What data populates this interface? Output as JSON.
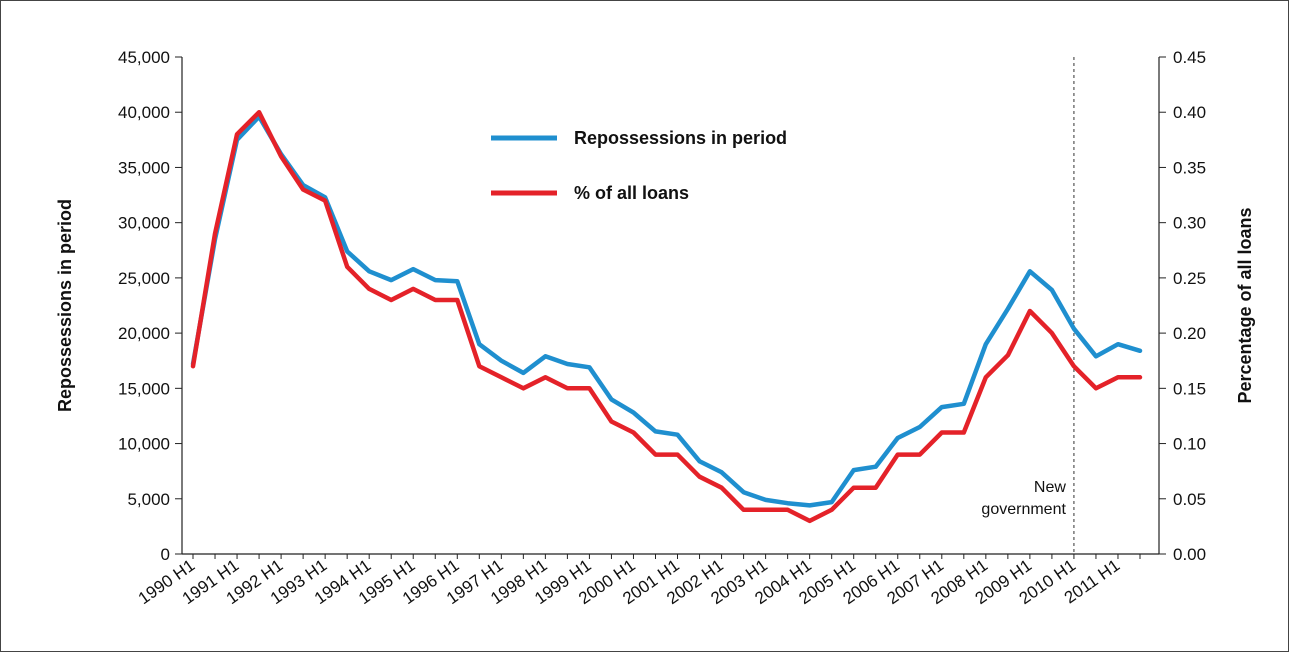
{
  "chart_data": {
    "type": "line",
    "x": [
      "1990 H1",
      "1990 H2",
      "1991 H1",
      "1991 H2",
      "1992 H1",
      "1992 H2",
      "1993 H1",
      "1993 H2",
      "1994 H1",
      "1994 H2",
      "1995 H1",
      "1995 H2",
      "1996 H1",
      "1996 H2",
      "1997 H1",
      "1997 H2",
      "1998 H1",
      "1998 H2",
      "1999 H1",
      "1999 H2",
      "2000 H1",
      "2000 H2",
      "2001 H1",
      "2001 H2",
      "2002 H1",
      "2002 H2",
      "2003 H1",
      "2003 H2",
      "2004 H1",
      "2004 H2",
      "2005 H1",
      "2005 H2",
      "2006 H1",
      "2006 H2",
      "2007 H1",
      "2007 H2",
      "2008 H1",
      "2008 H2",
      "2009 H1",
      "2009 H2",
      "2010 H1",
      "2010 H2",
      "2011 H1",
      "2011 H2"
    ],
    "x_tick_labels": [
      "1990 H1",
      "1991 H1",
      "1992 H1",
      "1993 H1",
      "1994 H1",
      "1995 H1",
      "1996 H1",
      "1997 H1",
      "1998 H1",
      "1999 H1",
      "2000 H1",
      "2001 H1",
      "2002 H1",
      "2003 H1",
      "2004 H1",
      "2005 H1",
      "2006 H1",
      "2007 H1",
      "2008 H1",
      "2009 H1",
      "2010 H1",
      "2011 H1"
    ],
    "y_ticks_left": [
      "0",
      "5,000",
      "10,000",
      "15,000",
      "20,000",
      "25,000",
      "30,000",
      "35,000",
      "40,000",
      "45,000"
    ],
    "y_ticks_right": [
      "0.00",
      "0.05",
      "0.10",
      "0.15",
      "0.20",
      "0.25",
      "0.30",
      "0.35",
      "0.40",
      "0.45"
    ],
    "ylim_left": [
      0,
      45000
    ],
    "ylim_right": [
      0,
      0.45
    ],
    "ylabel_left": "Repossessions in period",
    "ylabel_right": "Percentage of all loans",
    "grid": false,
    "legend_position": "top-center",
    "series": [
      {
        "name": "Repossessions in period",
        "axis": "left",
        "color": "#1f8fcf",
        "values": [
          17200,
          28500,
          37500,
          39600,
          36200,
          33400,
          32300,
          27400,
          25600,
          24800,
          25800,
          24800,
          24700,
          19000,
          17500,
          16400,
          17900,
          17200,
          16900,
          14000,
          12800,
          11100,
          10800,
          8400,
          7400,
          5600,
          4900,
          4600,
          4400,
          4700,
          7600,
          7900,
          10500,
          11500,
          13300,
          13600,
          19000,
          22200,
          25600,
          23900,
          20400,
          17900,
          19000,
          18400
        ]
      },
      {
        "name": "% of all loans",
        "axis": "right",
        "color": "#e42229",
        "values": [
          0.17,
          0.29,
          0.38,
          0.4,
          0.36,
          0.33,
          0.32,
          0.26,
          0.24,
          0.23,
          0.24,
          0.23,
          0.23,
          0.17,
          0.16,
          0.15,
          0.16,
          0.15,
          0.15,
          0.12,
          0.11,
          0.09,
          0.09,
          0.07,
          0.06,
          0.04,
          0.04,
          0.04,
          0.03,
          0.04,
          0.06,
          0.06,
          0.09,
          0.09,
          0.11,
          0.11,
          0.16,
          0.18,
          0.22,
          0.2,
          0.17,
          0.15,
          0.16,
          0.16
        ]
      }
    ],
    "annotation": {
      "line1": "New",
      "line2": "government",
      "at_x": "2010 H1"
    }
  }
}
